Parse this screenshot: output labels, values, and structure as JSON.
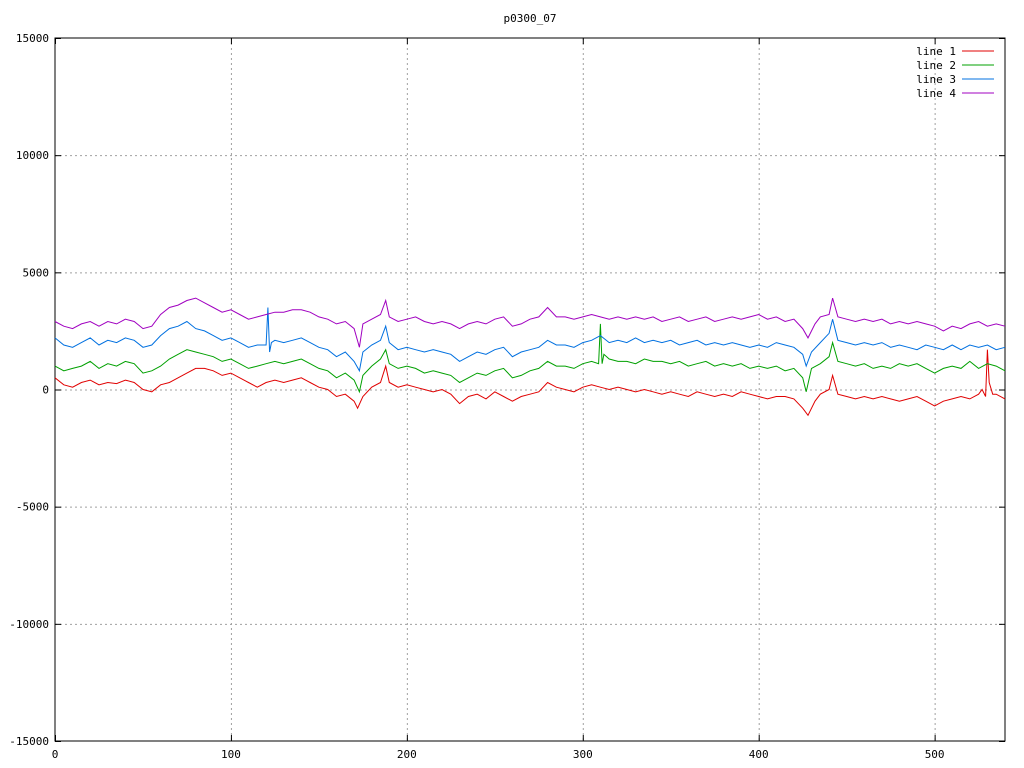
{
  "chart_data": {
    "type": "line",
    "title": "p0300_07",
    "xlim": [
      0,
      540
    ],
    "ylim": [
      -15000,
      15000
    ],
    "xticks": [
      0,
      100,
      200,
      300,
      400,
      500
    ],
    "yticks": [
      -15000,
      -10000,
      -5000,
      0,
      5000,
      10000,
      15000
    ],
    "grid": true,
    "legend_position": "top-right",
    "series": [
      {
        "name": "line 1",
        "color": "#e00000",
        "x": [
          0,
          5,
          10,
          15,
          20,
          25,
          30,
          35,
          40,
          45,
          50,
          55,
          60,
          65,
          70,
          75,
          80,
          85,
          90,
          95,
          100,
          105,
          110,
          115,
          120,
          125,
          130,
          135,
          140,
          145,
          150,
          155,
          160,
          165,
          170,
          172,
          175,
          180,
          185,
          188,
          190,
          195,
          200,
          205,
          210,
          215,
          220,
          225,
          230,
          235,
          240,
          245,
          250,
          255,
          260,
          265,
          270,
          275,
          280,
          285,
          290,
          295,
          300,
          305,
          310,
          315,
          320,
          325,
          330,
          335,
          340,
          345,
          350,
          355,
          360,
          365,
          370,
          375,
          380,
          385,
          390,
          395,
          400,
          405,
          410,
          415,
          420,
          425,
          428,
          432,
          435,
          440,
          442,
          445,
          450,
          455,
          460,
          465,
          470,
          475,
          480,
          485,
          490,
          495,
          500,
          505,
          510,
          515,
          520,
          525,
          527,
          529,
          530,
          531,
          533,
          535,
          540
        ],
        "y": [
          500,
          200,
          100,
          300,
          400,
          200,
          300,
          250,
          400,
          300,
          0,
          -100,
          200,
          300,
          500,
          700,
          900,
          900,
          800,
          600,
          700,
          500,
          300,
          100,
          300,
          400,
          300,
          400,
          500,
          300,
          100,
          0,
          -300,
          -200,
          -500,
          -800,
          -300,
          100,
          300,
          1000,
          300,
          100,
          200,
          100,
          0,
          -100,
          0,
          -200,
          -600,
          -300,
          -200,
          -400,
          -100,
          -300,
          -500,
          -300,
          -200,
          -100,
          300,
          100,
          0,
          -100,
          100,
          200,
          100,
          0,
          100,
          0,
          -100,
          0,
          -100,
          -200,
          -100,
          -200,
          -300,
          -100,
          -200,
          -300,
          -200,
          -300,
          -100,
          -200,
          -300,
          -400,
          -300,
          -300,
          -400,
          -800,
          -1100,
          -500,
          -200,
          0,
          600,
          -200,
          -300,
          -400,
          -300,
          -400,
          -300,
          -400,
          -500,
          -400,
          -300,
          -500,
          -700,
          -500,
          -400,
          -300,
          -400,
          -200,
          0,
          -300,
          1700,
          300,
          -200,
          -200,
          -400
        ]
      },
      {
        "name": "line 2",
        "color": "#00a000",
        "x": [
          0,
          5,
          10,
          15,
          20,
          25,
          30,
          35,
          40,
          45,
          50,
          55,
          60,
          65,
          70,
          75,
          80,
          85,
          90,
          95,
          100,
          105,
          110,
          115,
          120,
          125,
          130,
          135,
          140,
          145,
          150,
          155,
          160,
          165,
          170,
          173,
          175,
          180,
          185,
          188,
          190,
          195,
          200,
          205,
          210,
          215,
          220,
          225,
          230,
          235,
          240,
          245,
          250,
          255,
          260,
          265,
          270,
          275,
          280,
          285,
          290,
          295,
          300,
          305,
          309,
          310,
          311,
          312,
          315,
          320,
          325,
          330,
          335,
          340,
          345,
          350,
          355,
          360,
          365,
          370,
          375,
          380,
          385,
          390,
          395,
          400,
          405,
          410,
          415,
          420,
          425,
          427,
          430,
          435,
          440,
          442,
          445,
          450,
          455,
          460,
          465,
          470,
          475,
          480,
          485,
          490,
          495,
          500,
          505,
          510,
          515,
          520,
          525,
          530,
          535,
          540
        ],
        "y": [
          1000,
          800,
          900,
          1000,
          1200,
          900,
          1100,
          1000,
          1200,
          1100,
          700,
          800,
          1000,
          1300,
          1500,
          1700,
          1600,
          1500,
          1400,
          1200,
          1300,
          1100,
          900,
          1000,
          1100,
          1200,
          1100,
          1200,
          1300,
          1100,
          900,
          800,
          500,
          700,
          400,
          -100,
          600,
          1000,
          1300,
          1700,
          1100,
          900,
          1000,
          900,
          700,
          800,
          700,
          600,
          300,
          500,
          700,
          600,
          800,
          900,
          500,
          600,
          800,
          900,
          1200,
          1000,
          1000,
          900,
          1100,
          1200,
          1100,
          2800,
          1100,
          1500,
          1300,
          1200,
          1200,
          1100,
          1300,
          1200,
          1200,
          1100,
          1200,
          1000,
          1100,
          1200,
          1000,
          1100,
          1000,
          1100,
          900,
          1000,
          900,
          1000,
          800,
          900,
          500,
          -100,
          900,
          1100,
          1400,
          2000,
          1200,
          1100,
          1000,
          1100,
          900,
          1000,
          900,
          1100,
          1000,
          1100,
          900,
          700,
          900,
          1000,
          900,
          1200,
          900,
          1100,
          1000,
          800
        ]
      },
      {
        "name": "line 3",
        "color": "#0070e0",
        "x": [
          0,
          5,
          10,
          15,
          20,
          25,
          30,
          35,
          40,
          45,
          50,
          55,
          60,
          65,
          70,
          75,
          80,
          85,
          90,
          95,
          100,
          105,
          110,
          115,
          120,
          121,
          122,
          123,
          125,
          130,
          135,
          140,
          145,
          150,
          155,
          160,
          165,
          170,
          173,
          175,
          180,
          185,
          188,
          190,
          195,
          200,
          205,
          210,
          215,
          220,
          225,
          230,
          235,
          240,
          245,
          250,
          255,
          260,
          265,
          270,
          275,
          280,
          285,
          290,
          295,
          300,
          305,
          310,
          315,
          320,
          325,
          330,
          335,
          340,
          345,
          350,
          355,
          360,
          365,
          370,
          375,
          380,
          385,
          390,
          395,
          400,
          405,
          410,
          415,
          420,
          425,
          427,
          430,
          435,
          440,
          442,
          445,
          450,
          455,
          460,
          465,
          470,
          475,
          480,
          485,
          490,
          495,
          500,
          505,
          510,
          515,
          520,
          525,
          530,
          535,
          540
        ],
        "y": [
          2200,
          1900,
          1800,
          2000,
          2200,
          1900,
          2100,
          2000,
          2200,
          2100,
          1800,
          1900,
          2300,
          2600,
          2700,
          2900,
          2600,
          2500,
          2300,
          2100,
          2200,
          2000,
          1800,
          1900,
          1900,
          3500,
          1600,
          2000,
          2100,
          2000,
          2100,
          2200,
          2000,
          1800,
          1700,
          1400,
          1600,
          1200,
          800,
          1600,
          1900,
          2100,
          2700,
          2000,
          1700,
          1800,
          1700,
          1600,
          1700,
          1600,
          1500,
          1200,
          1400,
          1600,
          1500,
          1700,
          1800,
          1400,
          1600,
          1700,
          1800,
          2100,
          1900,
          1900,
          1800,
          2000,
          2100,
          2300,
          2000,
          2100,
          2000,
          2200,
          2000,
          2100,
          2000,
          2100,
          1900,
          2000,
          2100,
          1900,
          2000,
          1900,
          2000,
          1900,
          1800,
          1900,
          1800,
          2000,
          1900,
          1800,
          1500,
          1000,
          1600,
          2000,
          2400,
          3000,
          2100,
          2000,
          1900,
          2000,
          1900,
          2000,
          1800,
          1900,
          1800,
          1700,
          1900,
          1800,
          1700,
          1900,
          1700,
          1900,
          1800,
          1900,
          1700,
          1800
        ]
      },
      {
        "name": "line 4",
        "color": "#a000c0",
        "x": [
          0,
          5,
          10,
          15,
          20,
          25,
          30,
          35,
          40,
          45,
          50,
          55,
          60,
          65,
          70,
          75,
          80,
          85,
          90,
          95,
          100,
          105,
          110,
          115,
          120,
          125,
          130,
          135,
          140,
          145,
          150,
          155,
          160,
          165,
          170,
          173,
          175,
          180,
          185,
          188,
          190,
          195,
          200,
          205,
          210,
          215,
          220,
          225,
          230,
          235,
          240,
          245,
          250,
          255,
          260,
          265,
          270,
          275,
          280,
          285,
          290,
          295,
          300,
          305,
          310,
          315,
          320,
          325,
          330,
          335,
          340,
          345,
          350,
          355,
          360,
          365,
          370,
          375,
          380,
          385,
          390,
          395,
          400,
          405,
          410,
          415,
          420,
          425,
          428,
          432,
          435,
          440,
          442,
          445,
          450,
          455,
          460,
          465,
          470,
          475,
          480,
          485,
          490,
          495,
          500,
          505,
          510,
          515,
          520,
          525,
          530,
          535,
          540
        ],
        "y": [
          2900,
          2700,
          2600,
          2800,
          2900,
          2700,
          2900,
          2800,
          3000,
          2900,
          2600,
          2700,
          3200,
          3500,
          3600,
          3800,
          3900,
          3700,
          3500,
          3300,
          3400,
          3200,
          3000,
          3100,
          3200,
          3300,
          3300,
          3400,
          3400,
          3300,
          3100,
          3000,
          2800,
          2900,
          2600,
          1800,
          2800,
          3000,
          3200,
          3800,
          3100,
          2900,
          3000,
          3100,
          2900,
          2800,
          2900,
          2800,
          2600,
          2800,
          2900,
          2800,
          3000,
          3100,
          2700,
          2800,
          3000,
          3100,
          3500,
          3100,
          3100,
          3000,
          3100,
          3200,
          3100,
          3000,
          3100,
          3000,
          3100,
          3000,
          3100,
          2900,
          3000,
          3100,
          2900,
          3000,
          3100,
          2900,
          3000,
          3100,
          3000,
          3100,
          3200,
          3000,
          3100,
          2900,
          3000,
          2600,
          2200,
          2800,
          3100,
          3200,
          3900,
          3100,
          3000,
          2900,
          3000,
          2900,
          3000,
          2800,
          2900,
          2800,
          2900,
          2800,
          2700,
          2500,
          2700,
          2600,
          2800,
          2900,
          2700,
          2800,
          2700
        ]
      }
    ]
  }
}
